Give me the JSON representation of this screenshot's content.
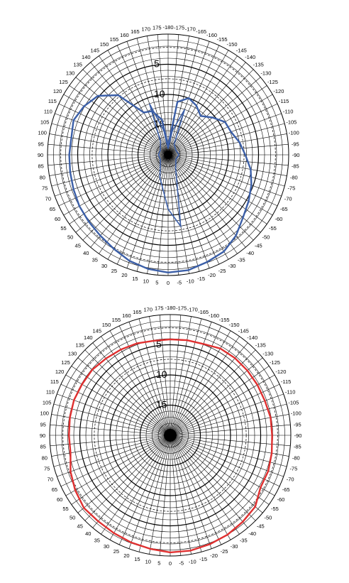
{
  "chart_data": [
    {
      "type": "polar",
      "title": "",
      "angle_ticks": [
        {
          "label": "0",
          "deg": 0
        },
        {
          "label": "-5",
          "deg": -5
        },
        {
          "label": "-10",
          "deg": -10
        },
        {
          "label": "-15",
          "deg": -15
        },
        {
          "label": "-20",
          "deg": -20
        },
        {
          "label": "-25",
          "deg": -25
        },
        {
          "label": "-30",
          "deg": -30
        },
        {
          "label": "-35",
          "deg": -35
        },
        {
          "label": "-40",
          "deg": -40
        },
        {
          "label": "-45",
          "deg": -45
        },
        {
          "label": "-50",
          "deg": -50
        },
        {
          "label": "-55",
          "deg": -55
        },
        {
          "label": "-60",
          "deg": -60
        },
        {
          "label": "-65",
          "deg": -65
        },
        {
          "label": "-70",
          "deg": -70
        },
        {
          "label": "-75",
          "deg": -75
        },
        {
          "label": "-80",
          "deg": -80
        },
        {
          "label": "-85",
          "deg": -85
        },
        {
          "label": "-90",
          "deg": -90
        },
        {
          "label": "-95",
          "deg": -95
        },
        {
          "label": "-100",
          "deg": -100
        },
        {
          "label": "-105",
          "deg": -105
        },
        {
          "label": "-110",
          "deg": -110
        },
        {
          "label": "-115",
          "deg": -115
        },
        {
          "label": "-120",
          "deg": -120
        },
        {
          "label": "-125",
          "deg": -125
        },
        {
          "label": "-130",
          "deg": -130
        },
        {
          "label": "-135",
          "deg": -135
        },
        {
          "label": "-140",
          "deg": -140
        },
        {
          "label": "-145",
          "deg": -145
        },
        {
          "label": "-150",
          "deg": -150
        },
        {
          "label": "-155",
          "deg": -155
        },
        {
          "label": "-160",
          "deg": -160
        },
        {
          "label": "-165",
          "deg": -165
        },
        {
          "label": "-170",
          "deg": -170
        },
        {
          "label": "-175",
          "deg": -175
        },
        {
          "label": "-180",
          "deg": 180
        },
        {
          "label": "5",
          "deg": 5
        },
        {
          "label": "10",
          "deg": 10
        },
        {
          "label": "15",
          "deg": 15
        },
        {
          "label": "20",
          "deg": 20
        },
        {
          "label": "25",
          "deg": 25
        },
        {
          "label": "30",
          "deg": 30
        },
        {
          "label": "35",
          "deg": 35
        },
        {
          "label": "40",
          "deg": 40
        },
        {
          "label": "45",
          "deg": 45
        },
        {
          "label": "50",
          "deg": 50
        },
        {
          "label": "55",
          "deg": 55
        },
        {
          "label": "60",
          "deg": 60
        },
        {
          "label": "65",
          "deg": 65
        },
        {
          "label": "70",
          "deg": 70
        },
        {
          "label": "75",
          "deg": 75
        },
        {
          "label": "80",
          "deg": 80
        },
        {
          "label": "85",
          "deg": 85
        },
        {
          "label": "90",
          "deg": 90
        },
        {
          "label": "95",
          "deg": 95
        },
        {
          "label": "100",
          "deg": 100
        },
        {
          "label": "105",
          "deg": 105
        },
        {
          "label": "110",
          "deg": 110
        },
        {
          "label": "115",
          "deg": 115
        },
        {
          "label": "120",
          "deg": 120
        },
        {
          "label": "125",
          "deg": 125
        },
        {
          "label": "130",
          "deg": 130
        },
        {
          "label": "135",
          "deg": 135
        },
        {
          "label": "140",
          "deg": 140
        },
        {
          "label": "145",
          "deg": 145
        },
        {
          "label": "150",
          "deg": 150
        },
        {
          "label": "155",
          "deg": 155
        },
        {
          "label": "160",
          "deg": 160
        },
        {
          "label": "165",
          "deg": 165
        },
        {
          "label": "170",
          "deg": 170
        },
        {
          "label": "175",
          "deg": 175
        }
      ],
      "radial_ticks": [
        {
          "label": "5",
          "value": 5
        },
        {
          "label": "10",
          "value": 10
        },
        {
          "label": "15",
          "value": 15
        }
      ],
      "radial_range": [
        0,
        20
      ],
      "radial_direction": "inward",
      "series": [
        {
          "color": "#3b5fa8",
          "theta": [
            0,
            10,
            20,
            30,
            40,
            50,
            60,
            70,
            80,
            90,
            100,
            110,
            120,
            130,
            140,
            150,
            160,
            170,
            180,
            -170,
            -160,
            -150,
            -140,
            -130,
            -120,
            -110,
            -100,
            -90,
            -80,
            -70,
            -60,
            -50,
            -40,
            -30,
            -20,
            -10
          ],
          "r": [
            0.5,
            0.8,
            1.3,
            2.0,
            2.5,
            2.8,
            3.0,
            3.3,
            3.5,
            3.6,
            3.7,
            3.3,
            3.9,
            4.8,
            7.1,
            11.9,
            12.3,
            14.1,
            18.5,
            11.1,
            10.0,
            10.6,
            11.6,
            10.4,
            9.1,
            8.9,
            8.0,
            7.2,
            6.1,
            5.3,
            4.6,
            3.8,
            2.5,
            1.5,
            1.1,
            0.6
          ],
          "inner_theta": [
            0,
            20,
            40,
            60,
            90,
            120,
            150,
            160,
            170,
            180,
            190,
            200,
            210,
            240,
            270,
            300,
            330,
            350
          ],
          "inner_r": [
            11,
            16,
            18,
            18.5,
            18.4,
            18.5,
            17.5,
            11,
            16,
            19,
            16,
            12,
            18,
            18.5,
            18.2,
            18.5,
            17.5,
            8
          ]
        }
      ]
    },
    {
      "type": "polar",
      "title": "",
      "angle_ticks": "same",
      "radial_ticks": [
        {
          "label": "5",
          "value": 5
        },
        {
          "label": "10",
          "value": 10
        },
        {
          "label": "15",
          "value": 15
        }
      ],
      "radial_range": [
        0,
        20
      ],
      "radial_direction": "inward",
      "series": [
        {
          "color": "#e03030",
          "theta": [
            0,
            10,
            20,
            30,
            40,
            50,
            60,
            70,
            80,
            90,
            100,
            110,
            120,
            130,
            140,
            150,
            160,
            170,
            180,
            -170,
            -160,
            -150,
            -140,
            -130,
            -120,
            -110,
            -100,
            -90,
            -80,
            -70,
            -60,
            -50,
            -40,
            -30,
            -20,
            -10
          ],
          "r": [
            0.6,
            0.9,
            1.1,
            1.3,
            1.4,
            1.3,
            1.8,
            2.4,
            3.2,
            3.2,
            3.1,
            3.0,
            3.1,
            3.1,
            3.4,
            3.6,
            3.8,
            4.1,
            4.1,
            4.0,
            3.9,
            3.4,
            3.3,
            3.3,
            3.3,
            3.3,
            3.1,
            3.1,
            2.9,
            2.7,
            2.7,
            1.6,
            1.3,
            1.0,
            0.8,
            0.6
          ]
        }
      ]
    }
  ]
}
